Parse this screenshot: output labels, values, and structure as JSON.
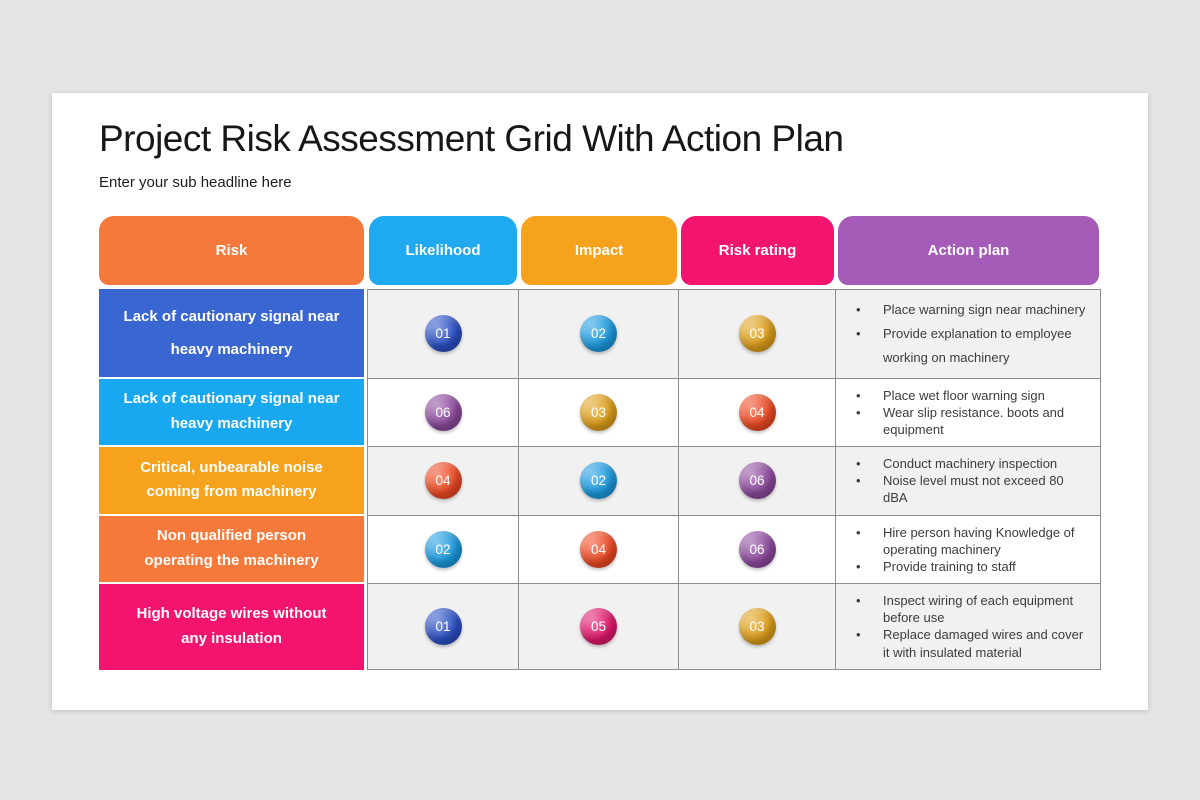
{
  "page": {
    "background": "#E6E5E5",
    "card_background": "#FFFFFF"
  },
  "header": {
    "title": "Project Risk Assessment Grid With Action Plan",
    "subtitle": "Enter your sub headline here"
  },
  "table": {
    "grid_border_color": "#8D8D8D",
    "row_background_shaded": "#F2F1F1",
    "row_background_plain": "#FFFFFF",
    "columns": [
      {
        "label": "Risk",
        "color": "#F5793B"
      },
      {
        "label": "Likelihood",
        "color": "#1FA9F0"
      },
      {
        "label": "Impact",
        "color": "#F7A21C"
      },
      {
        "label": "Risk rating",
        "color": "#F2146E"
      },
      {
        "label": "Action plan",
        "color": "#A55BB8"
      }
    ],
    "rows": [
      {
        "risk": "Lack of cautionary signal near heavy machinery",
        "risk_bg": "#3A66D1",
        "likelihood": {
          "value": "01",
          "color": "#2B50C4"
        },
        "impact": {
          "value": "02",
          "color": "#1B9BE0"
        },
        "risk_rating": {
          "value": "03",
          "color": "#DFA01B"
        },
        "action_plan": [
          "Place warning sign near machinery",
          "Provide explanation to employee working on machinery"
        ]
      },
      {
        "risk": "Lack of cautionary signal near heavy machinery",
        "risk_bg": "#18A8F0",
        "likelihood": {
          "value": "06",
          "color": "#8E4A9E"
        },
        "impact": {
          "value": "03",
          "color": "#DFA01B"
        },
        "risk_rating": {
          "value": "04",
          "color": "#EE4A23"
        },
        "action_plan": [
          "Place wet floor warning sign",
          "Wear slip resistance. boots and equipment"
        ]
      },
      {
        "risk": "Critical, unbearable noise coming from machinery",
        "risk_bg": "#F7A21C",
        "likelihood": {
          "value": "04",
          "color": "#EE4A23"
        },
        "impact": {
          "value": "02",
          "color": "#1B9BE0"
        },
        "risk_rating": {
          "value": "06",
          "color": "#8E4A9E"
        },
        "action_plan": [
          "Conduct machinery inspection",
          "Noise level must not exceed 80 dBA"
        ]
      },
      {
        "risk": "Non qualified person operating the machinery",
        "risk_bg": "#F5793B",
        "likelihood": {
          "value": "02",
          "color": "#1B9BE0"
        },
        "impact": {
          "value": "04",
          "color": "#EE4A23"
        },
        "risk_rating": {
          "value": "06",
          "color": "#8E4A9E"
        },
        "action_plan": [
          "Hire person having Knowledge of operating machinery",
          "Provide training to staff"
        ]
      },
      {
        "risk": "High voltage wires without any insulation",
        "risk_bg": "#F2146E",
        "likelihood": {
          "value": "01",
          "color": "#2B50C4"
        },
        "impact": {
          "value": "05",
          "color": "#E1186C"
        },
        "risk_rating": {
          "value": "03",
          "color": "#DFA01B"
        },
        "action_plan": [
          "Inspect wiring of each equipment before use",
          "Replace damaged wires and cover it with insulated material"
        ]
      }
    ]
  }
}
